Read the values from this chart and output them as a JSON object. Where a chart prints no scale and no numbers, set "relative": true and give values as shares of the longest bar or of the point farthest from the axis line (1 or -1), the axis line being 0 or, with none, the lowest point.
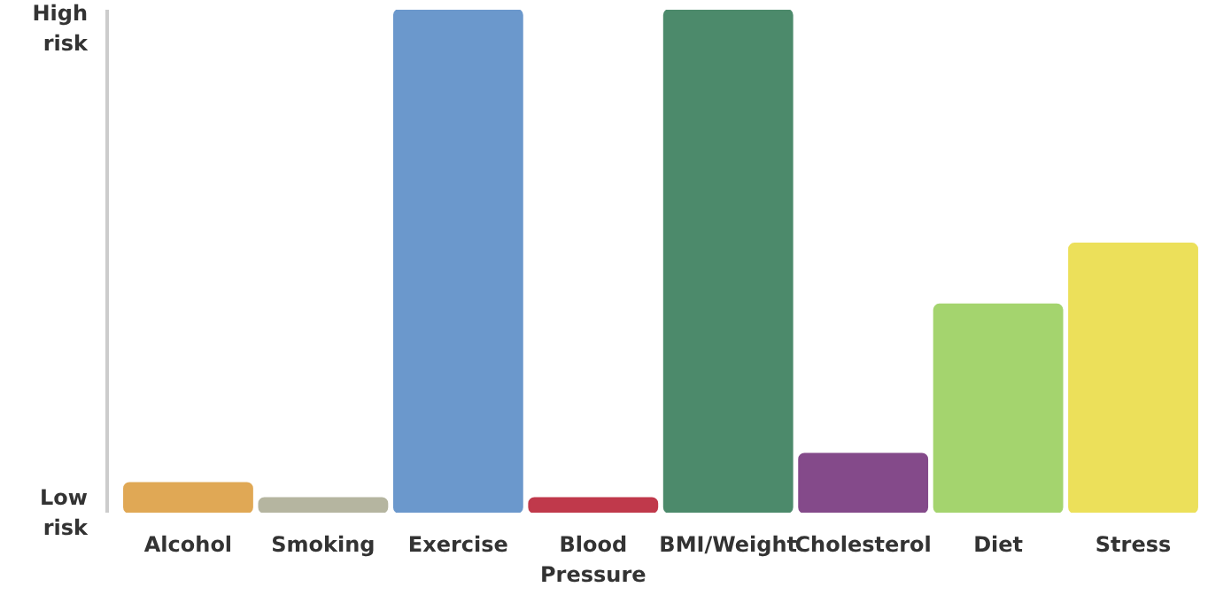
{
  "chart_data": {
    "type": "bar",
    "relative": true,
    "grid": false,
    "categories": [
      "Alcohol",
      "Smoking",
      "Exercise",
      "Blood Pressure",
      "BMI/Weight",
      "Cholesterol",
      "Diet",
      "Stress"
    ],
    "values": [
      0.059,
      0.029,
      1,
      0.029,
      1,
      0.117,
      0.414,
      0.535
    ],
    "colors": [
      "#e0a855",
      "#b5b5a0",
      "#6b98cc",
      "#c0394b",
      "#4c8a6b",
      "#844a8a",
      "#a4d46e",
      "#ece05a"
    ],
    "annotations": [
      "High risk",
      "Low risk"
    ]
  }
}
